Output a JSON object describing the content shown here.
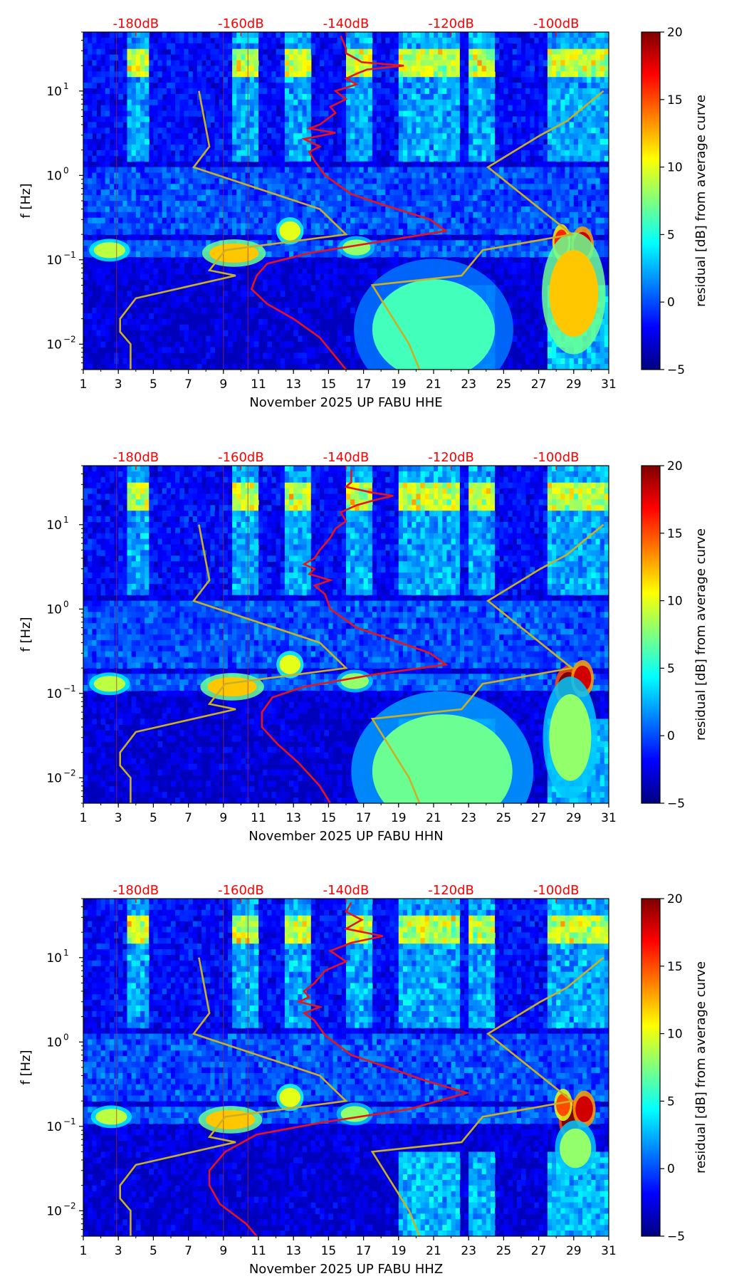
{
  "colorscale": {
    "stops": [
      "#00007f",
      "#0000ff",
      "#007fff",
      "#00ffff",
      "#7fff7f",
      "#ffff00",
      "#ff7f00",
      "#ff0000",
      "#7f0000"
    ]
  },
  "colors": {
    "db_curve": "#e8141c",
    "noise_model": "#c9b026",
    "db_labels": "#ff0000"
  },
  "chart_data": [
    {
      "type": "heatmap",
      "xlabel": "November 2025 UP FABU  HHE",
      "ylabel": "f [Hz]",
      "colorbar_label": "residual [dB] from average curve",
      "x_ticks": [
        "1",
        "3",
        "5",
        "7",
        "9",
        "11",
        "13",
        "15",
        "17",
        "19",
        "21",
        "23",
        "25",
        "27",
        "29",
        "31"
      ],
      "y_ticks": [
        "10",
        "10",
        "10",
        "10"
      ],
      "y_tick_exponents": [
        "1",
        "0",
        "−1",
        "−2"
      ],
      "y_scale": "log",
      "ylim": [
        0.005,
        50
      ],
      "xlim": [
        1,
        31
      ],
      "db_ticks": [
        "-180dB",
        "-160dB",
        "-140dB",
        "-120dB",
        "-100dB"
      ],
      "db_tick_values": [
        -180,
        -160,
        -140,
        -120,
        -100
      ],
      "db_range": [
        -190,
        -90
      ],
      "colorbar_ticks": [
        "20",
        "15",
        "10",
        "5",
        "0",
        "−5"
      ],
      "colorbar_values": [
        20,
        15,
        10,
        5,
        0,
        -5
      ],
      "colorbar_range": [
        -5,
        20
      ],
      "noise_model_curves": [
        {
          "name": "low",
          "points": [
            [
              -168,
              10
            ],
            [
              -166,
              2.2
            ],
            [
              -169,
              1.25
            ],
            [
              -145,
              0.4
            ],
            [
              -140,
              0.2
            ],
            [
              -163,
              0.13
            ],
            [
              -166,
              0.075
            ],
            [
              -161,
              0.065
            ],
            [
              -180,
              0.035
            ],
            [
              -183,
              0.02
            ],
            [
              -183,
              0.014
            ],
            [
              -181,
              0.01
            ],
            [
              -181,
              0.005
            ]
          ]
        },
        {
          "name": "high",
          "points": [
            [
              -91,
              10
            ],
            [
              -98,
              4.4
            ],
            [
              -103,
              3
            ],
            [
              -113,
              1.25
            ],
            [
              -97,
              0.2
            ],
            [
              -114,
              0.13
            ],
            [
              -118,
              0.065
            ],
            [
              -135,
              0.05
            ],
            [
              -128,
              0.01
            ],
            [
              -126,
              0.005
            ]
          ]
        }
      ],
      "db_curve": [
        [
          -141,
          45
        ],
        [
          -140,
          32
        ],
        [
          -140,
          28
        ],
        [
          -138,
          24
        ],
        [
          -137,
          22
        ],
        [
          -129,
          20
        ],
        [
          -136,
          18
        ],
        [
          -138,
          16
        ],
        [
          -140,
          14
        ],
        [
          -138,
          12
        ],
        [
          -142,
          10
        ],
        [
          -140,
          8
        ],
        [
          -143,
          6.5
        ],
        [
          -142,
          5.5
        ],
        [
          -145,
          4
        ],
        [
          -147,
          3.6
        ],
        [
          -142,
          3.2
        ],
        [
          -148,
          2.7
        ],
        [
          -145,
          2.2
        ],
        [
          -147,
          1.9
        ],
        [
          -146,
          1.5
        ],
        [
          -144,
          1.0
        ],
        [
          -139,
          0.6
        ],
        [
          -133,
          0.45
        ],
        [
          -124,
          0.3
        ],
        [
          -121,
          0.22
        ],
        [
          -132,
          0.17
        ],
        [
          -147,
          0.12
        ],
        [
          -155,
          0.09
        ],
        [
          -157,
          0.065
        ],
        [
          -158,
          0.045
        ],
        [
          -155,
          0.03
        ],
        [
          -150,
          0.02
        ],
        [
          -145,
          0.012
        ],
        [
          -140,
          0.005
        ]
      ],
      "blobs": [
        {
          "x": 28.8,
          "y": 0.12,
          "rx": 0.6,
          "ry": 0.35,
          "v": 20
        },
        {
          "x": 29.5,
          "y": 0.15,
          "rx": 0.5,
          "ry": 0.3,
          "v": 18
        },
        {
          "x": 28.3,
          "y": 0.16,
          "rx": 0.4,
          "ry": 0.3,
          "v": 16
        },
        {
          "x": 9.6,
          "y": 0.12,
          "rx": 1.4,
          "ry": 0.2,
          "v": 12
        },
        {
          "x": 2.5,
          "y": 0.13,
          "rx": 0.9,
          "ry": 0.15,
          "v": 9
        },
        {
          "x": 12.8,
          "y": 0.22,
          "rx": 0.6,
          "ry": 0.2,
          "v": 10
        },
        {
          "x": 16.6,
          "y": 0.14,
          "rx": 0.8,
          "ry": 0.15,
          "v": 8
        },
        {
          "x": 29.0,
          "y": 0.04,
          "rx": 1.4,
          "ry": 1.2,
          "v": 12
        },
        {
          "x": 21.0,
          "y": 0.015,
          "rx": 3.5,
          "ry": 1.4,
          "v": 6
        }
      ]
    },
    {
      "type": "heatmap",
      "xlabel": "November 2025 UP FABU  HHN",
      "ylabel": "f [Hz]",
      "colorbar_label": "residual [dB] from average curve",
      "x_ticks": [
        "1",
        "3",
        "5",
        "7",
        "9",
        "11",
        "13",
        "15",
        "17",
        "19",
        "21",
        "23",
        "25",
        "27",
        "29",
        "31"
      ],
      "y_ticks": [
        "10",
        "10",
        "10",
        "10"
      ],
      "y_tick_exponents": [
        "1",
        "0",
        "−1",
        "−2"
      ],
      "y_scale": "log",
      "ylim": [
        0.005,
        50
      ],
      "xlim": [
        1,
        31
      ],
      "db_ticks": [
        "-180dB",
        "-160dB",
        "-140dB",
        "-120dB",
        "-100dB"
      ],
      "db_tick_values": [
        -180,
        -160,
        -140,
        -120,
        -100
      ],
      "db_range": [
        -190,
        -90
      ],
      "colorbar_ticks": [
        "20",
        "15",
        "10",
        "5",
        "0",
        "−5"
      ],
      "colorbar_values": [
        20,
        15,
        10,
        5,
        0,
        -5
      ],
      "colorbar_range": [
        -5,
        20
      ],
      "noise_model_curves": [
        {
          "name": "low",
          "points": [
            [
              -168,
              10
            ],
            [
              -166,
              2.2
            ],
            [
              -169,
              1.25
            ],
            [
              -145,
              0.4
            ],
            [
              -140,
              0.2
            ],
            [
              -163,
              0.13
            ],
            [
              -166,
              0.075
            ],
            [
              -161,
              0.065
            ],
            [
              -180,
              0.035
            ],
            [
              -183,
              0.02
            ],
            [
              -183,
              0.014
            ],
            [
              -181,
              0.01
            ],
            [
              -181,
              0.005
            ]
          ]
        },
        {
          "name": "high",
          "points": [
            [
              -91,
              10
            ],
            [
              -98,
              4.4
            ],
            [
              -103,
              3
            ],
            [
              -113,
              1.25
            ],
            [
              -97,
              0.2
            ],
            [
              -114,
              0.13
            ],
            [
              -118,
              0.065
            ],
            [
              -135,
              0.05
            ],
            [
              -128,
              0.01
            ],
            [
              -126,
              0.005
            ]
          ]
        }
      ],
      "db_curve": [
        [
          -139,
          45
        ],
        [
          -139,
          32
        ],
        [
          -140,
          28
        ],
        [
          -135,
          24
        ],
        [
          -131,
          22
        ],
        [
          -134,
          20
        ],
        [
          -138,
          17
        ],
        [
          -141,
          14
        ],
        [
          -140,
          11
        ],
        [
          -142,
          9
        ],
        [
          -143,
          7
        ],
        [
          -145,
          5
        ],
        [
          -146,
          4
        ],
        [
          -148,
          3.4
        ],
        [
          -146,
          3
        ],
        [
          -147,
          2.6
        ],
        [
          -143,
          2.2
        ],
        [
          -146,
          1.9
        ],
        [
          -144,
          1.5
        ],
        [
          -143,
          1.0
        ],
        [
          -138,
          0.6
        ],
        [
          -132,
          0.45
        ],
        [
          -124,
          0.3
        ],
        [
          -121,
          0.22
        ],
        [
          -134,
          0.17
        ],
        [
          -148,
          0.12
        ],
        [
          -154,
          0.09
        ],
        [
          -156,
          0.06
        ],
        [
          -156,
          0.04
        ],
        [
          -153,
          0.025
        ],
        [
          -149,
          0.015
        ],
        [
          -145,
          0.008
        ],
        [
          -143,
          0.005
        ]
      ],
      "blobs": [
        {
          "x": 28.7,
          "y": 0.12,
          "rx": 0.6,
          "ry": 0.35,
          "v": 20
        },
        {
          "x": 29.5,
          "y": 0.15,
          "rx": 0.5,
          "ry": 0.3,
          "v": 18
        },
        {
          "x": 9.5,
          "y": 0.12,
          "rx": 1.4,
          "ry": 0.2,
          "v": 12
        },
        {
          "x": 2.5,
          "y": 0.13,
          "rx": 0.9,
          "ry": 0.15,
          "v": 9
        },
        {
          "x": 12.8,
          "y": 0.22,
          "rx": 0.6,
          "ry": 0.2,
          "v": 10
        },
        {
          "x": 16.5,
          "y": 0.14,
          "rx": 0.8,
          "ry": 0.15,
          "v": 8
        },
        {
          "x": 21.5,
          "y": 0.012,
          "rx": 4.0,
          "ry": 1.6,
          "v": 7
        },
        {
          "x": 28.8,
          "y": 0.03,
          "rx": 1.2,
          "ry": 1.2,
          "v": 8
        }
      ]
    },
    {
      "type": "heatmap",
      "xlabel": "November 2025 UP FABU  HHZ",
      "ylabel": "f [Hz]",
      "colorbar_label": "residual [dB] from average curve",
      "x_ticks": [
        "1",
        "3",
        "5",
        "7",
        "9",
        "11",
        "13",
        "15",
        "17",
        "19",
        "21",
        "23",
        "25",
        "27",
        "29",
        "31"
      ],
      "y_ticks": [
        "10",
        "10",
        "10",
        "10"
      ],
      "y_tick_exponents": [
        "1",
        "0",
        "−1",
        "−2"
      ],
      "y_scale": "log",
      "ylim": [
        0.005,
        50
      ],
      "xlim": [
        1,
        31
      ],
      "db_ticks": [
        "-180dB",
        "-160dB",
        "-140dB",
        "-120dB",
        "-100dB"
      ],
      "db_tick_values": [
        -180,
        -160,
        -140,
        -120,
        -100
      ],
      "db_range": [
        -190,
        -90
      ],
      "colorbar_ticks": [
        "20",
        "15",
        "10",
        "5",
        "0",
        "−5"
      ],
      "colorbar_values": [
        20,
        15,
        10,
        5,
        0,
        -5
      ],
      "colorbar_range": [
        -5,
        20
      ],
      "noise_model_curves": [
        {
          "name": "low",
          "points": [
            [
              -168,
              10
            ],
            [
              -166,
              2.2
            ],
            [
              -169,
              1.25
            ],
            [
              -145,
              0.4
            ],
            [
              -140,
              0.2
            ],
            [
              -163,
              0.13
            ],
            [
              -166,
              0.075
            ],
            [
              -161,
              0.065
            ],
            [
              -180,
              0.035
            ],
            [
              -183,
              0.02
            ],
            [
              -183,
              0.014
            ],
            [
              -181,
              0.01
            ],
            [
              -181,
              0.005
            ]
          ]
        },
        {
          "name": "high",
          "points": [
            [
              -91,
              10
            ],
            [
              -98,
              4.4
            ],
            [
              -103,
              3
            ],
            [
              -113,
              1.25
            ],
            [
              -97,
              0.2
            ],
            [
              -114,
              0.13
            ],
            [
              -118,
              0.065
            ],
            [
              -135,
              0.05
            ],
            [
              -128,
              0.01
            ],
            [
              -126,
              0.005
            ]
          ]
        }
      ],
      "db_curve": [
        [
          -139,
          45
        ],
        [
          -140,
          35
        ],
        [
          -137,
          28
        ],
        [
          -140,
          22
        ],
        [
          -133,
          18
        ],
        [
          -139,
          15
        ],
        [
          -143,
          12
        ],
        [
          -140,
          9
        ],
        [
          -144,
          7
        ],
        [
          -146,
          5
        ],
        [
          -148,
          4
        ],
        [
          -147,
          3.4
        ],
        [
          -149,
          3
        ],
        [
          -145,
          2.6
        ],
        [
          -148,
          2.2
        ],
        [
          -146,
          1.8
        ],
        [
          -144,
          1.2
        ],
        [
          -139,
          0.7
        ],
        [
          -132,
          0.5
        ],
        [
          -125,
          0.35
        ],
        [
          -117,
          0.25
        ],
        [
          -128,
          0.16
        ],
        [
          -145,
          0.11
        ],
        [
          -157,
          0.08
        ],
        [
          -163,
          0.05
        ],
        [
          -166,
          0.03
        ],
        [
          -166,
          0.02
        ],
        [
          -164,
          0.012
        ],
        [
          -159,
          0.007
        ],
        [
          -157,
          0.005
        ]
      ],
      "blobs": [
        {
          "x": 28.8,
          "y": 0.12,
          "rx": 0.5,
          "ry": 0.35,
          "v": 20
        },
        {
          "x": 29.6,
          "y": 0.16,
          "rx": 0.5,
          "ry": 0.3,
          "v": 18
        },
        {
          "x": 28.4,
          "y": 0.18,
          "rx": 0.4,
          "ry": 0.25,
          "v": 15
        },
        {
          "x": 9.4,
          "y": 0.12,
          "rx": 1.4,
          "ry": 0.2,
          "v": 12
        },
        {
          "x": 2.6,
          "y": 0.13,
          "rx": 0.9,
          "ry": 0.15,
          "v": 9
        },
        {
          "x": 12.8,
          "y": 0.22,
          "rx": 0.6,
          "ry": 0.2,
          "v": 10
        },
        {
          "x": 16.5,
          "y": 0.14,
          "rx": 0.8,
          "ry": 0.15,
          "v": 8
        },
        {
          "x": 29.1,
          "y": 0.055,
          "rx": 0.9,
          "ry": 0.5,
          "v": 8
        }
      ]
    }
  ]
}
